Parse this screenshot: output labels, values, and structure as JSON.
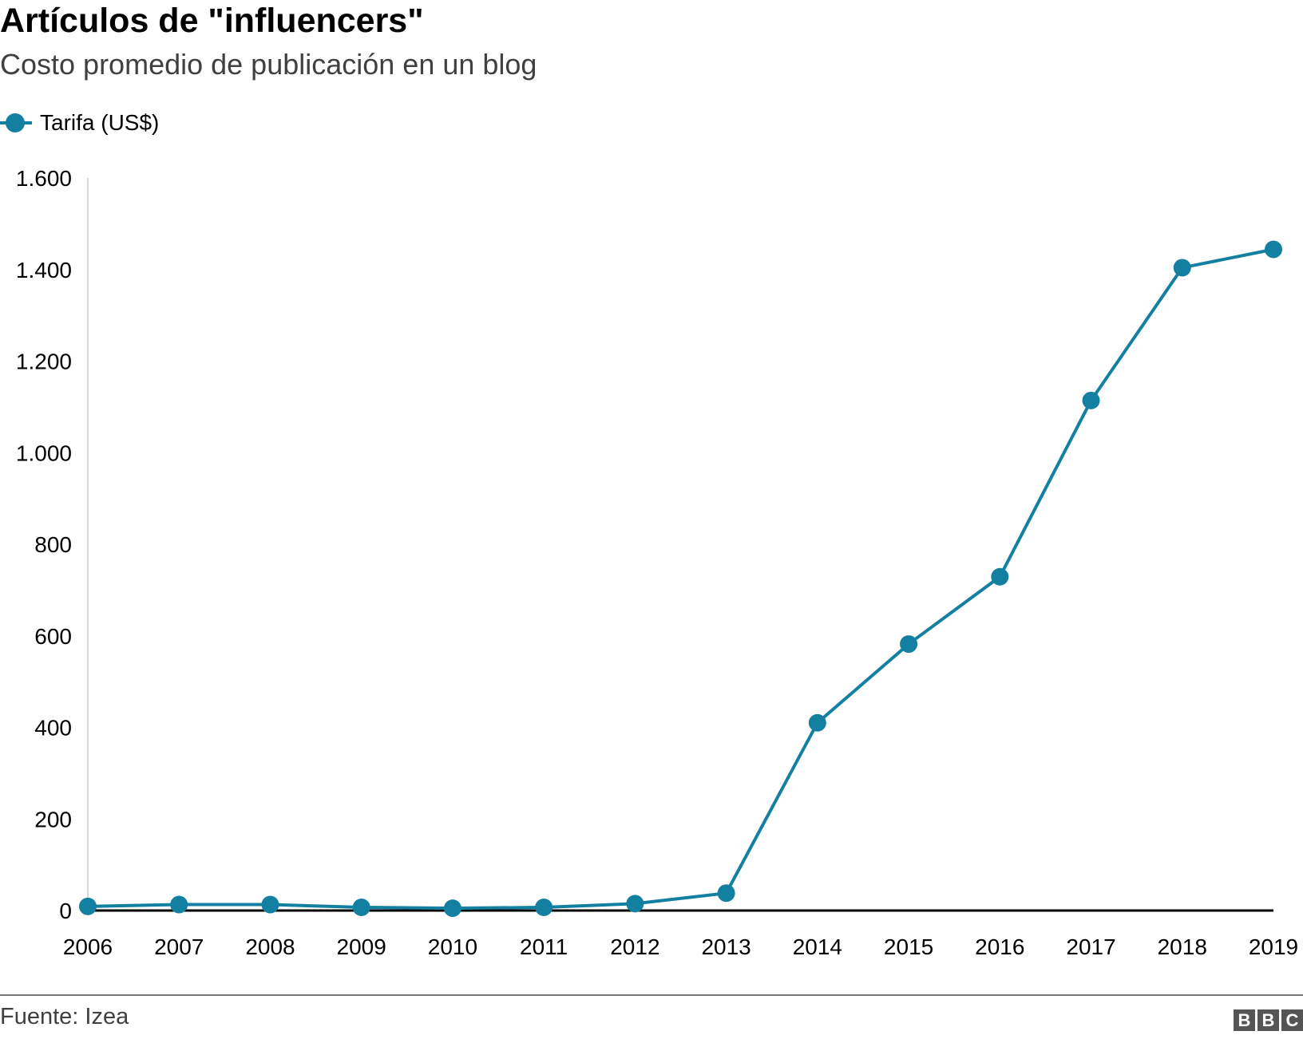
{
  "header": {
    "title": "Artículos de \"influencers\"",
    "subtitle": "Costo promedio de publicación en un blog"
  },
  "legend": {
    "label": "Tarifa (US$)",
    "color": "#1380A1"
  },
  "chart_data": {
    "type": "line",
    "title": "Artículos de \"influencers\"",
    "subtitle": "Costo promedio de publicación en un blog",
    "xlabel": "",
    "ylabel": "",
    "x": [
      "2006",
      "2007",
      "2008",
      "2009",
      "2010",
      "2011",
      "2012",
      "2013",
      "2014",
      "2015",
      "2016",
      "2017",
      "2018",
      "2019"
    ],
    "series": [
      {
        "name": "Tarifa (US$)",
        "color": "#1380A1",
        "values": [
          9,
          13,
          13,
          7,
          5,
          7,
          15,
          38,
          410,
          582,
          729,
          1114,
          1404,
          1444
        ]
      }
    ],
    "ylim": [
      0,
      1600
    ],
    "yticks": [
      0,
      200,
      400,
      600,
      800,
      1000,
      1200,
      1400,
      1600
    ],
    "ytick_labels": [
      "0",
      "200",
      "400",
      "600",
      "800",
      "1.000",
      "1.200",
      "1.400",
      "1.600"
    ],
    "grid": false,
    "legend_position": "top-left"
  },
  "footer": {
    "source": "Fuente: Izea",
    "logo": "BBC"
  }
}
